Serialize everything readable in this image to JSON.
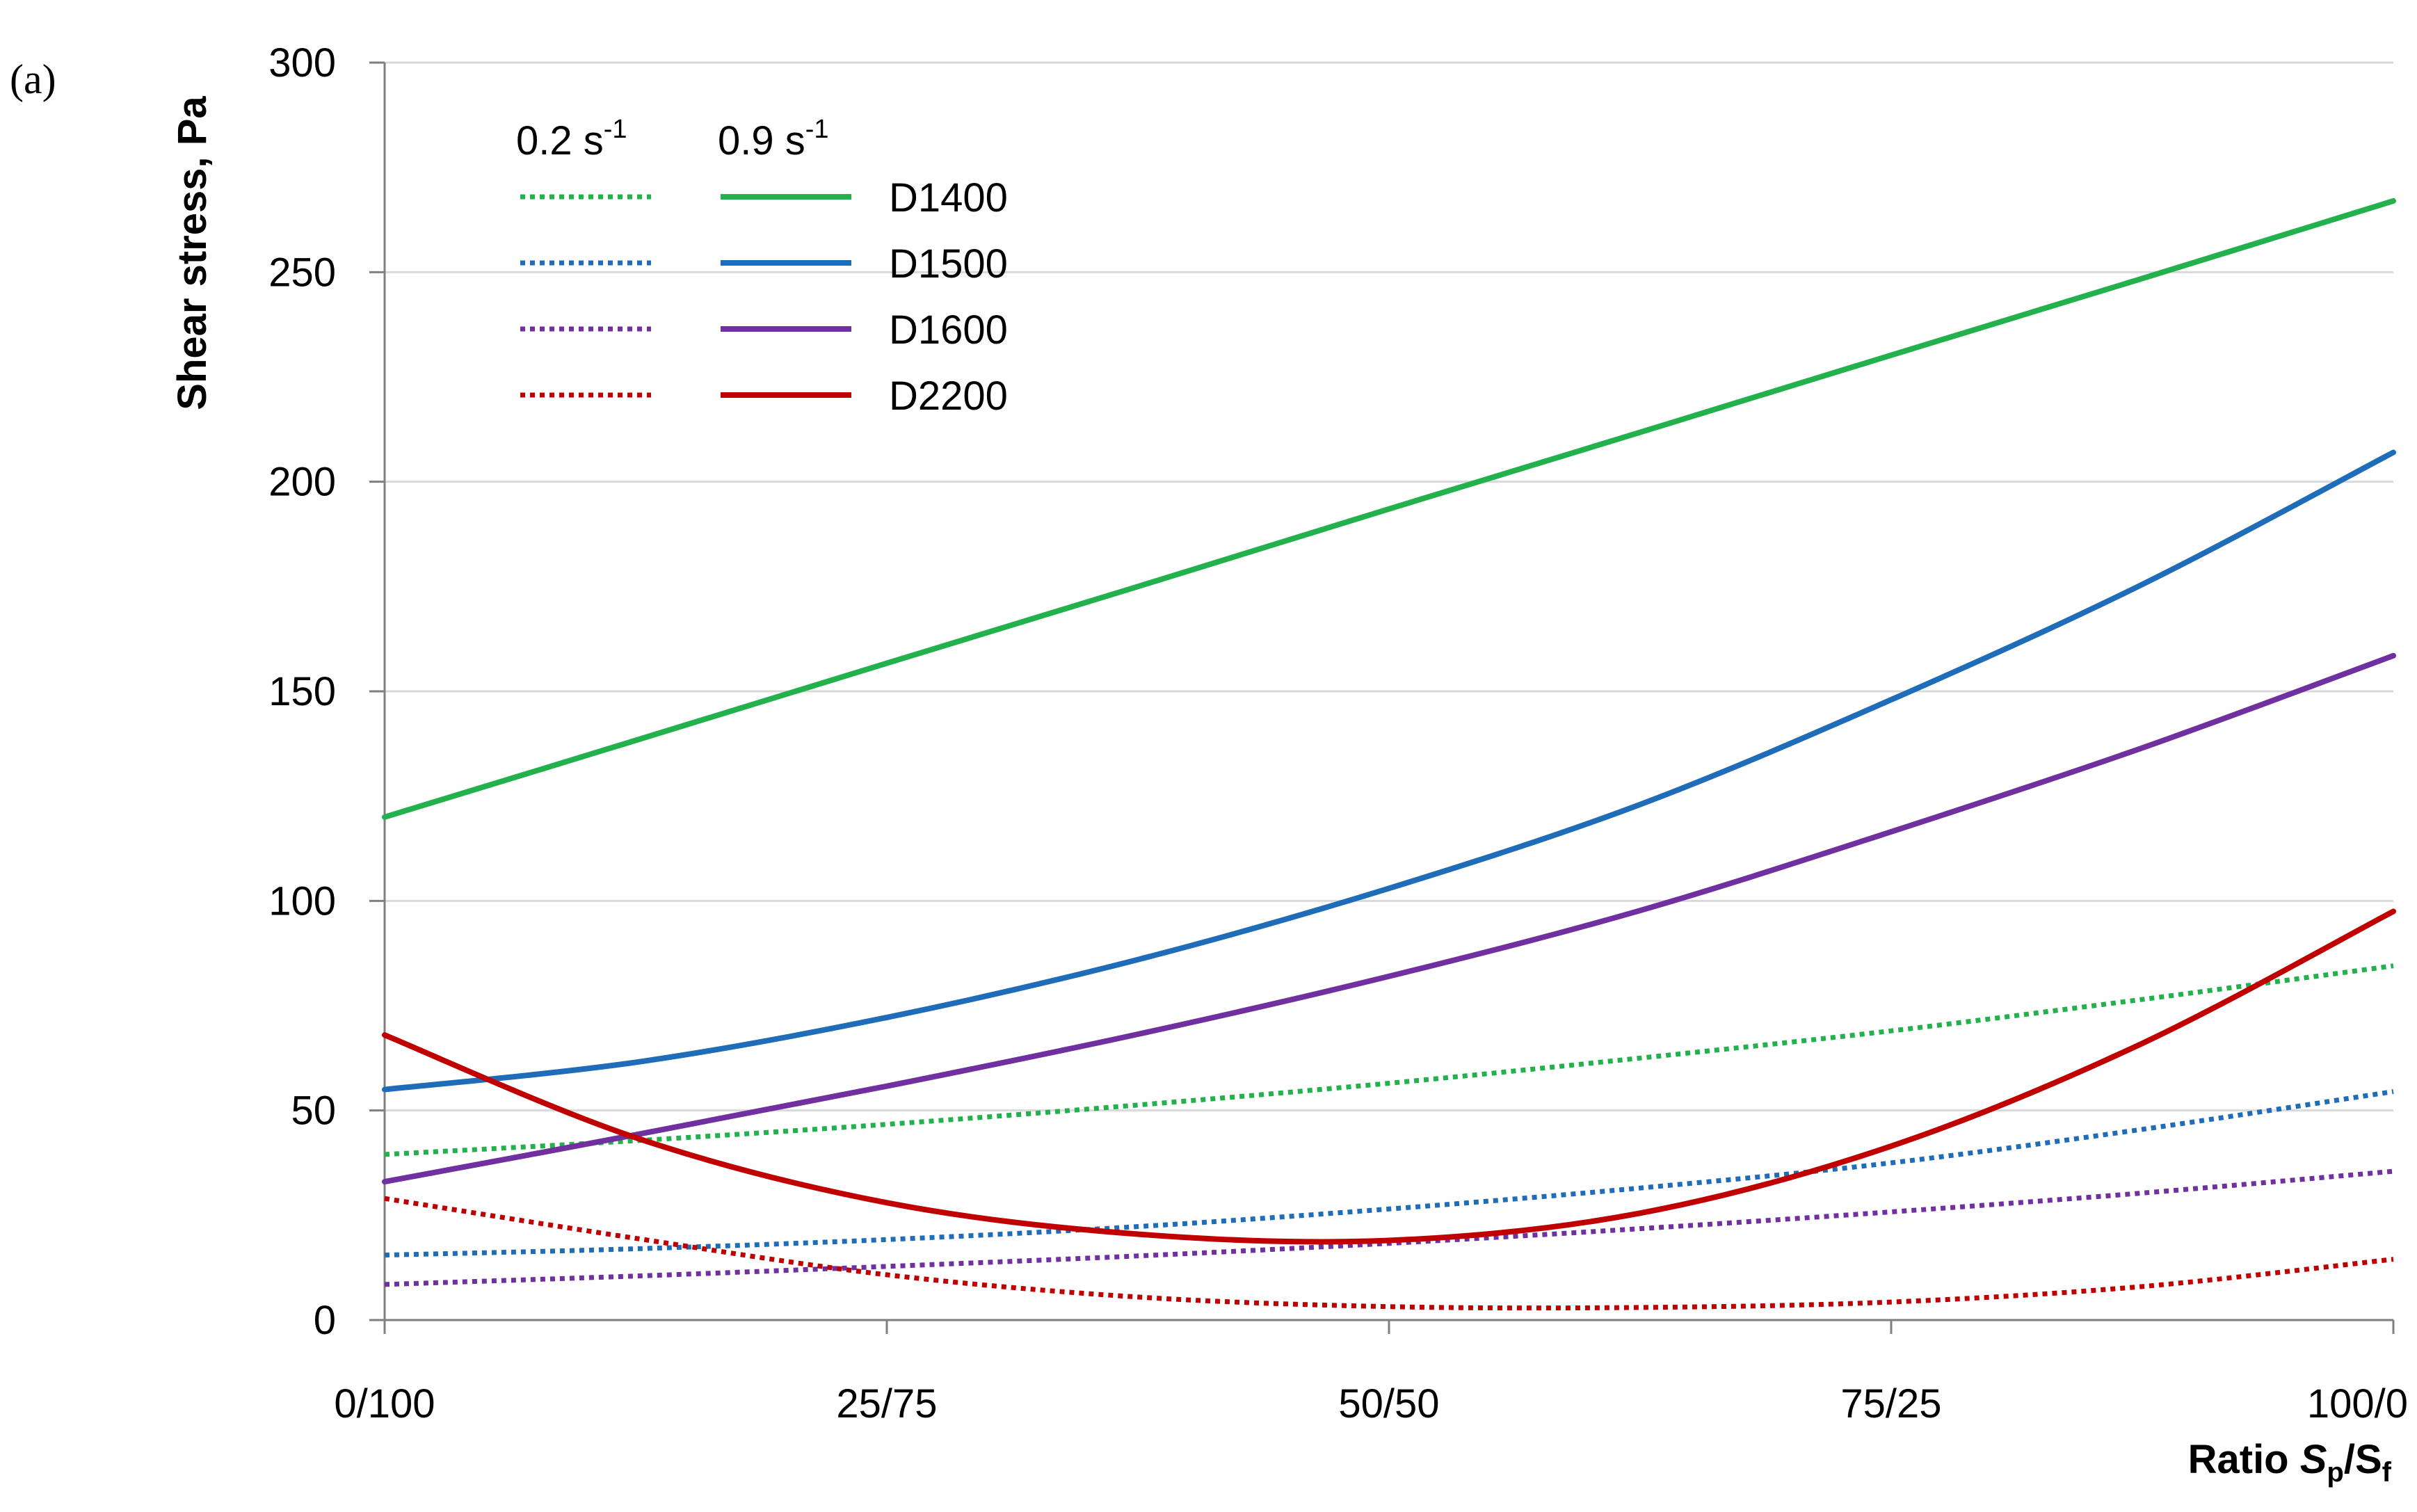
{
  "panel_label": "(a)",
  "chart_data": {
    "type": "line",
    "title": "",
    "ylabel": "Shear stress, Pa",
    "xlabel": {
      "prefix": "Ratio ",
      "s1": "S",
      "s1_sub": "p",
      "slash": "/",
      "s2": "S",
      "s2_sub": "f"
    },
    "x": [
      0,
      0.125,
      0.25,
      0.375,
      0.5,
      0.625,
      0.75,
      0.875,
      1.0
    ],
    "x_tick_labels": [
      "0/100",
      "25/75",
      "50/50",
      "75/25",
      "100/0"
    ],
    "y_ticks": [
      0,
      50,
      100,
      150,
      200,
      250,
      300
    ],
    "ylim": [
      0,
      300
    ],
    "xlim": [
      0,
      1
    ],
    "grid": true,
    "legend": {
      "placement": "top-left",
      "header_dotted": {
        "text": "0.2 s",
        "sup": "-1"
      },
      "header_solid": {
        "text": "0.9 s",
        "sup": "-1"
      }
    },
    "series": [
      {
        "name": "D1400",
        "rate": "0.9 s-1",
        "style": "solid",
        "color": "#22b14c",
        "values": [
          120,
          138.3,
          156.7,
          175,
          193.5,
          211.8,
          230.2,
          248.5,
          267
        ]
      },
      {
        "name": "D1500",
        "rate": "0.9 s-1",
        "style": "solid",
        "color": "#1f6db8",
        "values": [
          55,
          61.5,
          72.2,
          86,
          103,
          123,
          148,
          175.5,
          207
        ]
      },
      {
        "name": "D1600",
        "rate": "0.9 s-1",
        "style": "solid",
        "color": "#7030a0",
        "values": [
          33,
          44.2,
          55.8,
          68.2,
          82,
          97.7,
          116.5,
          136.5,
          158.5
        ]
      },
      {
        "name": "D2200",
        "rate": "0.9 s-1",
        "style": "solid",
        "color": "#c00000",
        "values": [
          68,
          43.5,
          28,
          20.5,
          19,
          25.5,
          41.5,
          66,
          97.5
        ]
      },
      {
        "name": "D1400",
        "rate": "0.2 s-1",
        "style": "dotted",
        "color": "#22b14c",
        "values": [
          39.5,
          42.8,
          46.7,
          51.3,
          56.5,
          62.5,
          69,
          76.5,
          84.5
        ]
      },
      {
        "name": "D1500",
        "rate": "0.2 s-1",
        "style": "dotted",
        "color": "#1f6db8",
        "values": [
          15.5,
          17,
          19.2,
          22.3,
          26.5,
          31.5,
          37.5,
          45.5,
          54.5
        ]
      },
      {
        "name": "D1600",
        "rate": "0.2 s-1",
        "style": "dotted",
        "color": "#7030a0",
        "values": [
          8.5,
          10.5,
          12.8,
          15.3,
          18.3,
          21.8,
          25.8,
          30.3,
          35.5
        ]
      },
      {
        "name": "D2200",
        "rate": "0.2 s-1",
        "style": "dotted",
        "color": "#c00000",
        "values": [
          29,
          19.5,
          10.8,
          5.5,
          3.2,
          3,
          4.3,
          8,
          14.5
        ]
      }
    ]
  }
}
